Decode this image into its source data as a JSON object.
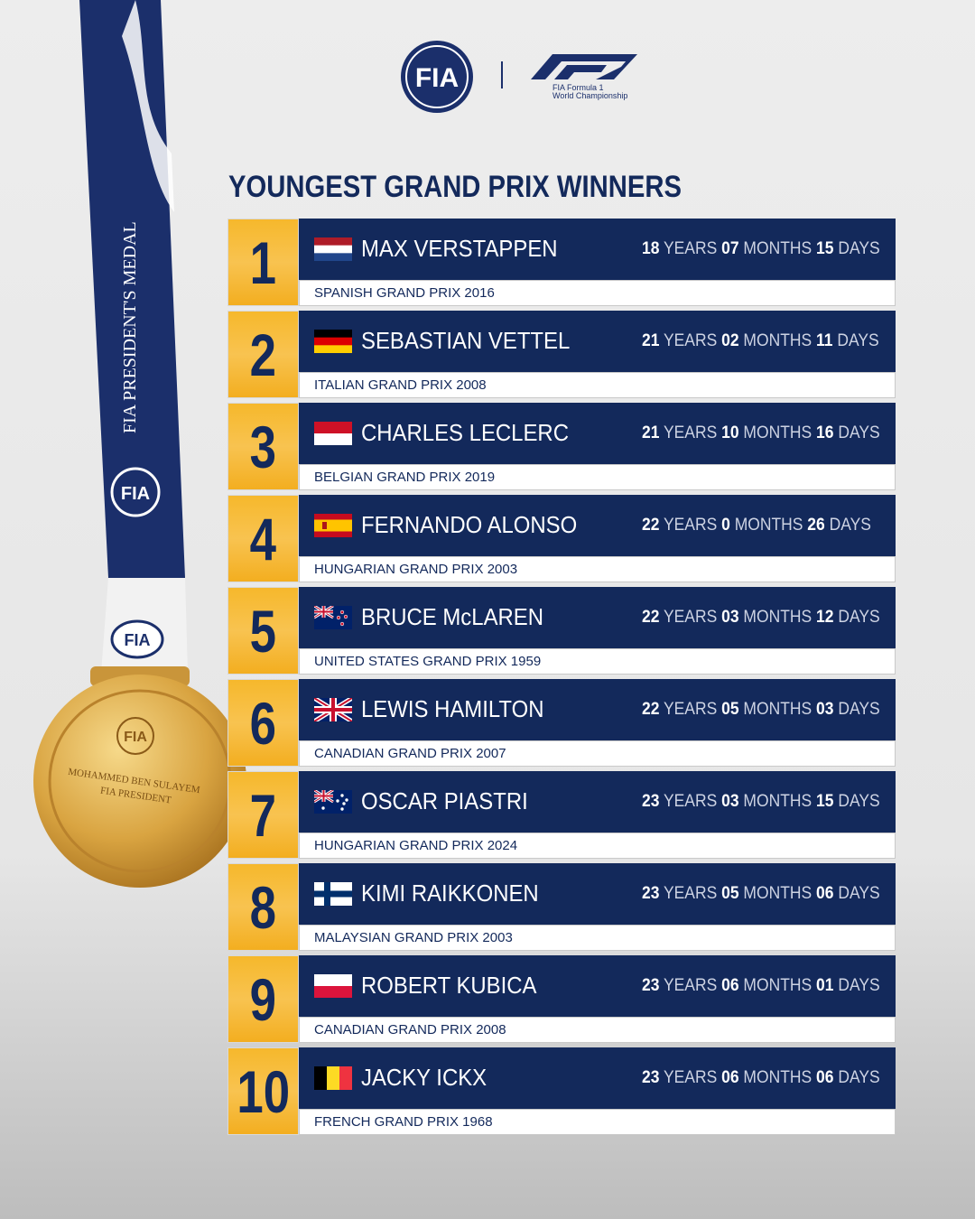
{
  "header": {
    "title": "YOUNGEST GRAND PRIX WINNERS",
    "logo_fia": "FIA",
    "logo_f1_line1": "FIA Formula 1",
    "logo_f1_line2": "World Championship"
  },
  "medal": {
    "ribbon_text": "FIA PRESIDENT'S MEDAL",
    "ribbon_logo": "FIA",
    "medal_logo": "FIA",
    "medal_line1": "MOHAMMED BEN SULAYEM",
    "medal_line2": "FIA PRESIDENT"
  },
  "units": {
    "years": "YEARS",
    "months": "MONTHS",
    "days": "DAYS"
  },
  "rows": [
    {
      "rank": "1",
      "name": "MAX VERSTAPPEN",
      "race": "SPANISH GRAND PRIX 2016",
      "years": "18",
      "months": "07",
      "days": "15"
    },
    {
      "rank": "2",
      "name": "SEBASTIAN VETTEL",
      "race": "ITALIAN GRAND PRIX 2008",
      "years": "21",
      "months": "02",
      "days": "11"
    },
    {
      "rank": "3",
      "name": "CHARLES LECLERC",
      "race": "BELGIAN GRAND PRIX 2019",
      "years": "21",
      "months": "10",
      "days": "16"
    },
    {
      "rank": "4",
      "name": "FERNANDO ALONSO",
      "race": "HUNGARIAN GRAND PRIX 2003",
      "years": "22",
      "months": "0",
      "days": "26"
    },
    {
      "rank": "5",
      "name": "BRUCE McLAREN",
      "race": "UNITED STATES GRAND PRIX 1959",
      "years": "22",
      "months": "03",
      "days": "12"
    },
    {
      "rank": "6",
      "name": "LEWIS HAMILTON",
      "race": "CANADIAN GRAND PRIX 2007",
      "years": "22",
      "months": "05",
      "days": "03"
    },
    {
      "rank": "7",
      "name": "OSCAR PIASTRI",
      "race": "HUNGARIAN GRAND PRIX 2024",
      "years": "23",
      "months": "03",
      "days": "15"
    },
    {
      "rank": "8",
      "name": "KIMI RAIKKONEN",
      "race": "MALAYSIAN GRAND PRIX 2003",
      "years": "23",
      "months": "05",
      "days": "06"
    },
    {
      "rank": "9",
      "name": "ROBERT KUBICA",
      "race": "CANADIAN GRAND PRIX 2008",
      "years": "23",
      "months": "06",
      "days": "01"
    },
    {
      "rank": "10",
      "name": "JACKY ICKX",
      "race": "FRENCH GRAND PRIX 1968",
      "years": "23",
      "months": "06",
      "days": "06"
    }
  ]
}
